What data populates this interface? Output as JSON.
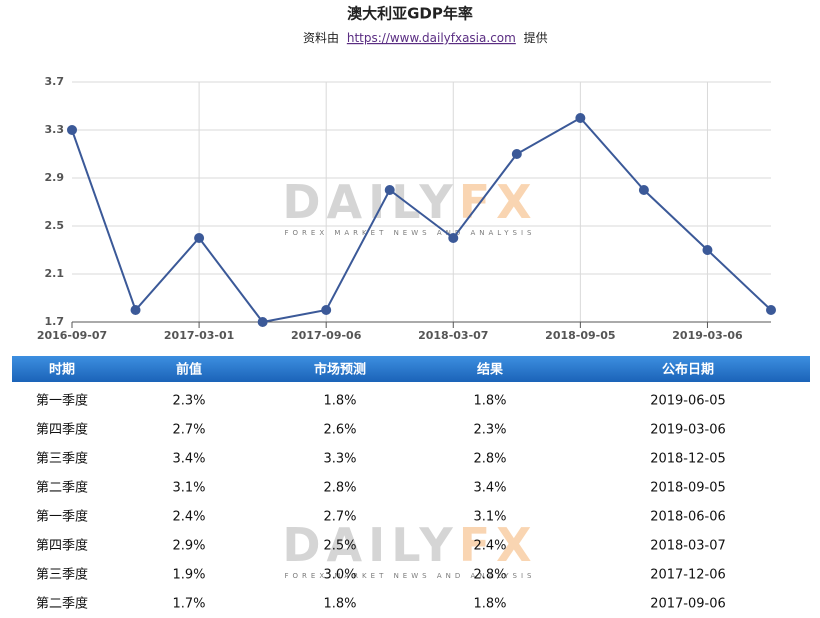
{
  "chart_data": {
    "type": "line",
    "title": "澳大利亚GDP年率",
    "source": {
      "prefix": "资料由",
      "link": "https://www.dailyfxasia.com",
      "suffix": "提供"
    },
    "categories": [
      "2016-09-07",
      null,
      "2017-03-01",
      null,
      "2017-09-06",
      null,
      "2018-03-07",
      null,
      "2018-09-05",
      null,
      "2019-03-06",
      null
    ],
    "series": [
      {
        "color": "#3b5998",
        "values": [
          3.3,
          1.8,
          2.4,
          1.7,
          1.8,
          2.8,
          2.4,
          3.1,
          3.4,
          2.8,
          2.3,
          1.8
        ]
      }
    ],
    "ylim": [
      1.7,
      3.7
    ],
    "yticks": [
      1.7,
      2.1,
      2.5,
      2.9,
      3.3,
      3.7
    ],
    "grid": true
  },
  "watermark": {
    "left": "DAILY",
    "right": "FX",
    "tagline": "FOREX MARKET NEWS AND ANALYSIS"
  },
  "table": {
    "header": [
      "时期",
      "前值",
      "市场预测",
      "结果",
      "公布日期"
    ],
    "rows": [
      [
        "第一季度",
        "2.3%",
        "1.8%",
        "1.8%",
        "2019-06-05"
      ],
      [
        "第四季度",
        "2.7%",
        "2.6%",
        "2.3%",
        "2019-03-06"
      ],
      [
        "第三季度",
        "3.4%",
        "3.3%",
        "2.8%",
        "2018-12-05"
      ],
      [
        "第二季度",
        "3.1%",
        "2.8%",
        "3.4%",
        "2018-09-05"
      ],
      [
        "第一季度",
        "2.4%",
        "2.7%",
        "3.1%",
        "2018-06-06"
      ],
      [
        "第四季度",
        "2.9%",
        "2.5%",
        "2.4%",
        "2018-03-07"
      ],
      [
        "第三季度",
        "1.9%",
        "3.0%",
        "2.8%",
        "2017-12-06"
      ],
      [
        "第二季度",
        "1.7%",
        "1.8%",
        "1.8%",
        "2017-09-06"
      ]
    ]
  }
}
